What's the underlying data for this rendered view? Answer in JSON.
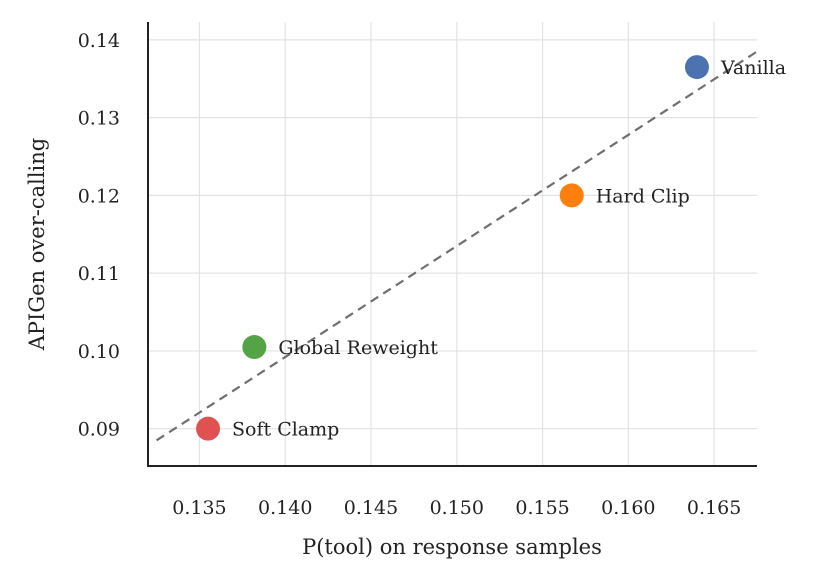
{
  "chart_data": {
    "type": "scatter",
    "title": "",
    "xlabel": "P(tool) on response samples",
    "ylabel": "APIGen over-calling",
    "xlim": [
      0.132,
      0.1675
    ],
    "ylim": [
      0.0852,
      0.1423
    ],
    "xticks": [
      0.135,
      0.14,
      0.145,
      0.15,
      0.155,
      0.16,
      0.165
    ],
    "xtick_labels": [
      "0.135",
      "0.140",
      "0.145",
      "0.150",
      "0.155",
      "0.160",
      "0.165"
    ],
    "yticks": [
      0.09,
      0.1,
      0.11,
      0.12,
      0.13,
      0.14
    ],
    "ytick_labels": [
      "0.09",
      "0.10",
      "0.11",
      "0.12",
      "0.13",
      "0.14"
    ],
    "grid": true,
    "points": [
      {
        "label": "Vanilla",
        "x": 0.164,
        "y": 0.1365,
        "color": "#4c72b0"
      },
      {
        "label": "Hard Clip",
        "x": 0.1567,
        "y": 0.12,
        "color": "#ff7f0e"
      },
      {
        "label": "Global Reweight",
        "x": 0.1382,
        "y": 0.1005,
        "color": "#55a347"
      },
      {
        "label": "Soft Clamp",
        "x": 0.1355,
        "y": 0.09,
        "color": "#e05252"
      }
    ],
    "fit_line": {
      "style": "dashed",
      "color": "#6f6f6f",
      "x": [
        0.1325,
        0.1675
      ],
      "y": [
        0.0885,
        0.1385
      ]
    }
  }
}
